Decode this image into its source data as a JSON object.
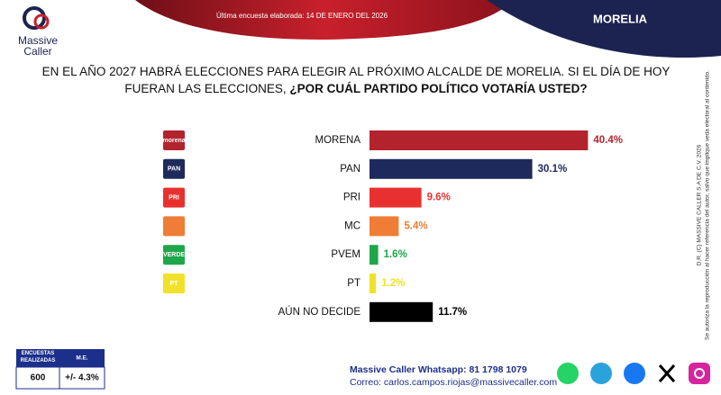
{
  "header": {
    "brand_line1": "Massive",
    "brand_line2": "Caller",
    "survey_date": "Última encuesta elaborada: 14 DE ENERO DEL 2026",
    "location": "MORELIA"
  },
  "chart_data": {
    "type": "hbar",
    "title": "EN EL AÑO 2027 HABRÁ ELECCIONES PARA ELEGIR AL PRÓXIMO ALCALDE DE MORELIA. SI EL DÍA DE HOY FUERAN LAS ELECCIONES, ",
    "title_emphasis": "¿POR CUÁL PARTIDO POLÍTICO VOTARÍA USTED?",
    "categories": [
      "MORENA",
      "PAN",
      "PRI",
      "MC",
      "PVEM",
      "PT",
      "AÚN NO DECIDE"
    ],
    "values": [
      40.4,
      30.1,
      9.6,
      5.4,
      1.6,
      1.2,
      11.7
    ],
    "value_labels": [
      "40.4%",
      "30.1%",
      "9.6%",
      "5.4%",
      "1.6%",
      "1.2%",
      "11.7%"
    ],
    "colors": [
      "#b3232e",
      "#1f2a5c",
      "#e8312f",
      "#ef7d35",
      "#1fa64a",
      "#f1e12a",
      "#000000"
    ],
    "logos": [
      "morena",
      "PAN",
      "PRI",
      null,
      "VERDE",
      "PT",
      null
    ]
  },
  "side_note": {
    "line1": "D.R. (C) MASSIVE CALLER S.A DE C.V. 2026",
    "line2": "Se autoriza la reproducción al hacer referencia del autor, salvo que implique veda electoral al contenido."
  },
  "footer": {
    "table": {
      "headers": [
        "ENCUESTAS REALIZADAS",
        "M.E."
      ],
      "row": [
        600,
        "+/- 4.3%"
      ]
    },
    "whatsapp": "Massive Caller Whatsapp: 81 1798 1079",
    "email": "Correo: carlos.campos.riojas@massivecaller.com"
  }
}
